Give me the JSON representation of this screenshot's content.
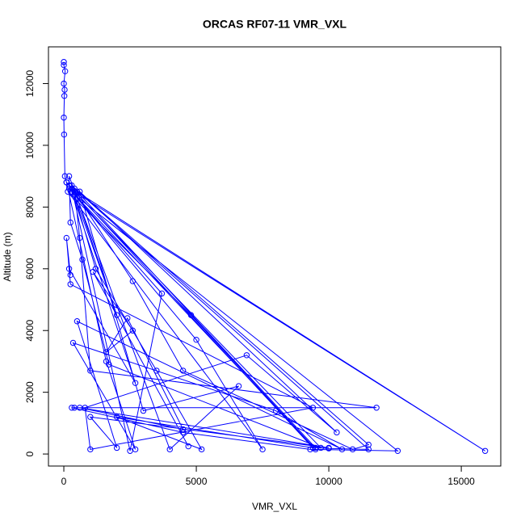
{
  "chart_data": {
    "type": "line",
    "title": "ORCAS RF07-11 VMR_VXL",
    "xlabel": "VMR_VXL",
    "ylabel": "Altitude (m)",
    "color": "#0000ff",
    "markers": true,
    "x": [
      0,
      0,
      50,
      0,
      30,
      20,
      0,
      10,
      40,
      100,
      200,
      300,
      500,
      9500,
      10000,
      11500,
      400,
      600,
      1000,
      11800,
      400,
      300,
      4500,
      9300,
      12600,
      400,
      2000,
      500,
      3700,
      2500,
      300,
      15900,
      200,
      5000,
      7500,
      150,
      4800,
      9500,
      300,
      2700,
      200,
      250,
      100,
      250,
      9400,
      1000,
      800,
      6900,
      10300,
      600,
      3000,
      6600,
      4000,
      200,
      250,
      700,
      1700,
      9700,
      400,
      2600,
      4500,
      10900,
      11500,
      300,
      1200,
      3500,
      5200,
      2000,
      9400,
      100,
      1600,
      2700,
      350,
      8000,
      10500,
      500,
      2000,
      1000,
      10000,
      600,
      4500,
      2400,
      1600,
      2600,
      1100,
      4700
    ],
    "values": [
      12700,
      12600,
      12400,
      12000,
      11800,
      11600,
      10900,
      10350,
      9000,
      8800,
      8700,
      8500,
      8500,
      200,
      180,
      150,
      8600,
      7000,
      2700,
      1500,
      1500,
      1500,
      700,
      150,
      100,
      8400,
      4500,
      8300,
      5200,
      100,
      8600,
      100,
      8600,
      3700,
      150,
      8500,
      4500,
      150,
      8500,
      2300,
      6000,
      5800,
      7000,
      5500,
      1500,
      150,
      1500,
      3200,
      700,
      8500,
      1400,
      2200,
      150,
      9000,
      7500,
      6300,
      2900,
      200,
      8500,
      5600,
      2700,
      150,
      300,
      8700,
      6000,
      2700,
      150,
      1200,
      200,
      8800,
      3000,
      150,
      3600,
      1400,
      150,
      4300,
      200,
      1200,
      200,
      1500,
      800,
      4400,
      3300,
      4000,
      5900,
      250
    ],
    "xlim": [
      -580,
      16490
    ],
    "ylim": [
      -390,
      13190
    ],
    "xticks": [
      0,
      5000,
      10000,
      15000
    ],
    "yticks": [
      0,
      2000,
      4000,
      6000,
      8000,
      10000,
      12000
    ]
  }
}
